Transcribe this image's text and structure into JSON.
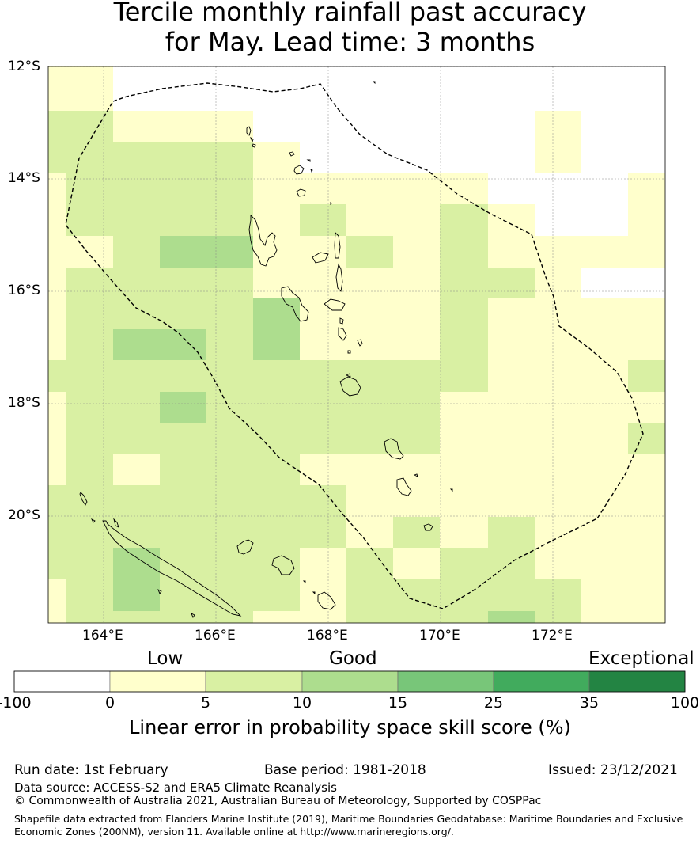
{
  "title": {
    "line1": "Tercile monthly rainfall past accuracy",
    "line2": "for May. Lead time: 3 months"
  },
  "map": {
    "lat_labels": [
      "12°S",
      "14°S",
      "16°S",
      "18°S",
      "20°S"
    ],
    "lon_labels": [
      "164°E",
      "166°E",
      "168°E",
      "170°E",
      "172°E"
    ],
    "extent": {
      "lon": [
        163.0,
        174.0
      ],
      "lat": [
        -12.0,
        -21.9
      ]
    },
    "grid_cell_deg": 0.83,
    "boundary": "Vanuatu Exclusive Economic Zone (dashed)"
  },
  "colorbar": {
    "category_labels": [
      "Low",
      "Good",
      "Exceptional"
    ],
    "ticks": [
      "-100",
      "0",
      "5",
      "10",
      "15",
      "25",
      "35",
      "100"
    ],
    "colors": [
      "#ffffff",
      "#ffffcc",
      "#d9f0a3",
      "#addd8e",
      "#78c679",
      "#41ab5d",
      "#238443"
    ],
    "title": "Linear error in probability space skill score (%)"
  },
  "footer": {
    "run_date": "Run date: 1st February",
    "base_period": "Base period: 1981-2018",
    "issued": "Issued: 23/12/2021",
    "data_source": "Data source: ACCESS-S2 and ERA5 Climate Reanalysis",
    "copyright": "© Commonwealth of Australia 2021, Australian Bureau of Meteorology, Supported by COSPPac",
    "shapefile_line1": "Shapefile data extracted from Flanders Marine Institute (2019), Maritime Boundaries Geodatabase: Maritime Boundaries and Exclusive",
    "shapefile_line2": "Economic Zones (200NM), version 11. Available online at http://www.marineregions.org/."
  }
}
